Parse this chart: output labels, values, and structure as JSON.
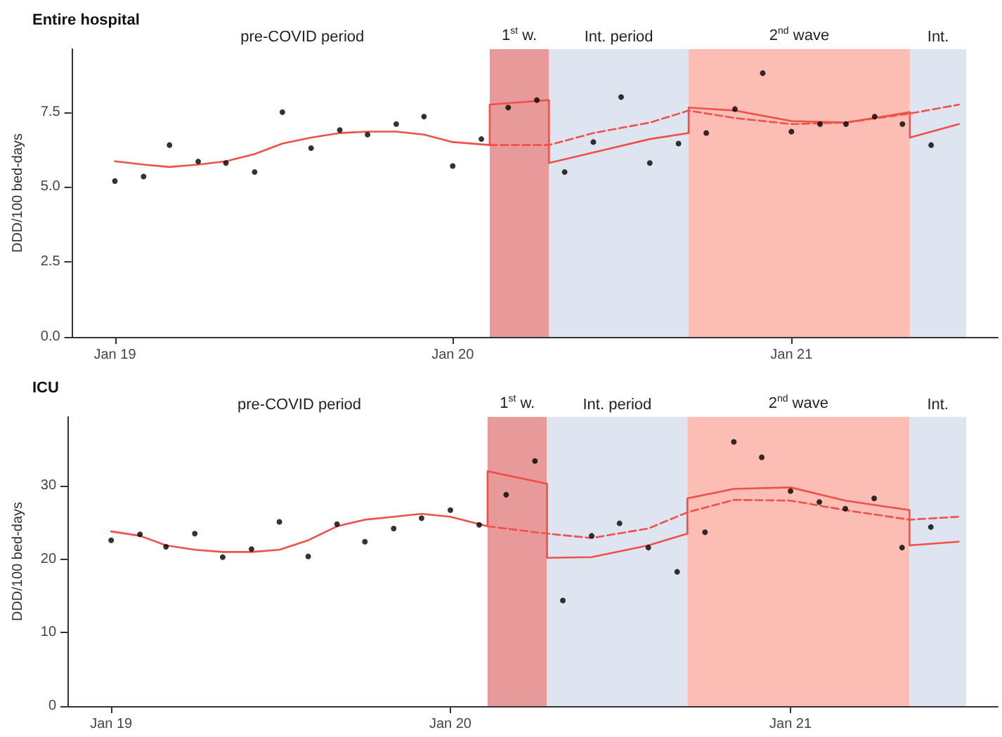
{
  "chart_data": [
    {
      "type": "scatter",
      "title": "Entire hospital",
      "ylabel": "DDD/100 bed-days",
      "grid": false,
      "annotations": [
        "pre-COVID period"
      ],
      "x": [
        "2019-01",
        "2019-02",
        "2019-03",
        "2019-04",
        "2019-05",
        "2019-06",
        "2019-07",
        "2019-08",
        "2019-09",
        "2019-10",
        "2019-11",
        "2019-12",
        "2020-01",
        "2020-02",
        "2020-03",
        "2020-04",
        "2020-05",
        "2020-06",
        "2020-07",
        "2020-08",
        "2020-09",
        "2020-10",
        "2020-11",
        "2020-12",
        "2021-01",
        "2021-02",
        "2021-03",
        "2021-04",
        "2021-05",
        "2021-06"
      ],
      "series": [
        {
          "marker": "circle",
          "color": "#000000",
          "values": [
            5.2,
            5.35,
            6.4,
            5.85,
            5.8,
            5.5,
            7.5,
            6.3,
            6.9,
            6.75,
            7.1,
            7.35,
            5.7,
            6.6,
            7.65,
            7.9,
            5.5,
            6.5,
            8.0,
            5.8,
            6.45,
            6.8,
            7.6,
            8.8,
            6.85,
            7.1,
            7.1,
            7.35,
            7.1,
            6.4
          ]
        },
        {
          "type": "line",
          "marker": "none",
          "line_style": "solid",
          "color": "#f0504a",
          "x": [
            "2019-01",
            "2019-02",
            "2019-03",
            "2019-04",
            "2019-05",
            "2019-06",
            "2019-07",
            "2019-08",
            "2019-09",
            "2019-10",
            "2019-11",
            "2019-12",
            "2020-01",
            "2020-02-10",
            "2020-02-10",
            "2020-04-14",
            "2020-04-14",
            "2020-06",
            "2020-08",
            "2020-09-12",
            "2020-09-12",
            "2020-11",
            "2021-01",
            "2021-03",
            "2021-05-09",
            "2021-05-09",
            "2021-07-01"
          ],
          "values": [
            5.86,
            5.75,
            5.67,
            5.75,
            5.86,
            6.1,
            6.45,
            6.65,
            6.8,
            6.85,
            6.85,
            6.75,
            6.5,
            6.4,
            7.75,
            7.9,
            5.8,
            6.15,
            6.6,
            6.8,
            7.65,
            7.55,
            7.2,
            7.15,
            7.5,
            6.65,
            7.1
          ]
        },
        {
          "type": "line",
          "marker": "none",
          "line_style": "dashed",
          "color": "#f0504a",
          "x": [
            "2020-02-10",
            "2020-04-14",
            "2020-06",
            "2020-08",
            "2020-09-12",
            "2020-11",
            "2021-01",
            "2021-03",
            "2021-05-09",
            "2021-07-01"
          ],
          "values": [
            6.4,
            6.4,
            6.8,
            7.15,
            7.55,
            7.3,
            7.1,
            7.15,
            7.45,
            7.75
          ]
        }
      ],
      "xlim": [
        "2018-11-15",
        "2021-08-12"
      ],
      "xticks": [
        {
          "value": "2019-01",
          "label": "Jan 19"
        },
        {
          "value": "2020-01",
          "label": "Jan 20"
        },
        {
          "value": "2021-01",
          "label": "Jan 21"
        }
      ],
      "ylim": [
        0,
        9.6
      ],
      "yticks": [
        {
          "value": 0,
          "label": "0.0"
        },
        {
          "value": 2.5,
          "label": "2.5"
        },
        {
          "value": 5,
          "label": "5.0"
        },
        {
          "value": 7.5,
          "label": "7.5"
        }
      ],
      "bands": [
        {
          "axis": "x",
          "from": "2020-02-10",
          "to": "2020-04-14",
          "label": "1$^{st}$ w.",
          "color": "#e89a9a"
        },
        {
          "axis": "x",
          "from": "2020-04-14",
          "to": "2020-09-12",
          "label": "Int. period",
          "color": "#dfe5f0"
        },
        {
          "axis": "x",
          "from": "2020-09-12",
          "to": "2021-05-09",
          "label": "2$^{nd}$ wave",
          "color": "#fbbdb4"
        },
        {
          "axis": "x",
          "from": "2021-05-09",
          "to": "2021-07-09",
          "label": "Int.",
          "color": "#dfe5f0"
        }
      ]
    },
    {
      "type": "scatter",
      "title": "ICU",
      "ylabel": "DDD/100 bed-days",
      "grid": false,
      "annotations": [
        "pre-COVID period"
      ],
      "x": [
        "2019-01",
        "2019-02",
        "2019-03",
        "2019-04",
        "2019-05",
        "2019-06",
        "2019-07",
        "2019-08",
        "2019-09",
        "2019-10",
        "2019-11",
        "2019-12",
        "2020-01",
        "2020-02",
        "2020-03",
        "2020-04",
        "2020-05",
        "2020-06",
        "2020-07",
        "2020-08",
        "2020-09",
        "2020-10",
        "2020-11",
        "2020-12",
        "2021-01",
        "2021-02",
        "2021-03",
        "2021-04",
        "2021-05",
        "2021-06"
      ],
      "series": [
        {
          "marker": "circle",
          "color": "#000000",
          "values": [
            22.6,
            23.4,
            21.7,
            23.5,
            20.3,
            21.4,
            25.1,
            20.4,
            24.8,
            22.4,
            24.2,
            25.6,
            26.7,
            24.7,
            28.8,
            33.4,
            14.4,
            23.2,
            24.9,
            21.6,
            18.3,
            23.7,
            36.0,
            33.9,
            29.3,
            27.8,
            26.9,
            28.3,
            21.6,
            24.4
          ]
        },
        {
          "type": "line",
          "marker": "none",
          "line_style": "solid",
          "color": "#f0504a",
          "x": [
            "2019-01",
            "2019-02",
            "2019-03",
            "2019-04",
            "2019-05",
            "2019-06",
            "2019-07",
            "2019-08",
            "2019-09",
            "2019-10",
            "2019-11",
            "2019-12",
            "2020-01",
            "2020-02-10",
            "2020-02-10",
            "2020-04-14",
            "2020-04-14",
            "2020-06",
            "2020-08",
            "2020-09-12",
            "2020-09-12",
            "2020-11",
            "2021-01",
            "2021-03",
            "2021-05-09",
            "2021-05-09",
            "2021-07-01"
          ],
          "values": [
            23.8,
            23.2,
            21.9,
            21.3,
            21.0,
            21.0,
            21.3,
            22.6,
            24.5,
            25.4,
            25.8,
            26.2,
            25.8,
            24.5,
            32.0,
            30.3,
            20.2,
            20.3,
            21.9,
            23.5,
            28.3,
            29.6,
            29.8,
            28.0,
            26.7,
            21.9,
            22.4
          ]
        },
        {
          "type": "line",
          "marker": "none",
          "line_style": "dashed",
          "color": "#f0504a",
          "x": [
            "2020-02-10",
            "2020-04-14",
            "2020-06",
            "2020-08",
            "2020-09-12",
            "2020-11",
            "2021-01",
            "2021-03",
            "2021-05-09",
            "2021-07-01"
          ],
          "values": [
            24.5,
            23.5,
            22.9,
            24.2,
            26.4,
            28.1,
            28.0,
            26.7,
            25.4,
            25.8
          ]
        }
      ],
      "xlim": [
        "2018-11-15",
        "2021-08-12"
      ],
      "xticks": [
        {
          "value": "2019-01",
          "label": "Jan 19"
        },
        {
          "value": "2020-01",
          "label": "Jan 20"
        },
        {
          "value": "2021-01",
          "label": "Jan 21"
        }
      ],
      "ylim": [
        0,
        39.4
      ],
      "yticks": [
        0,
        10,
        20,
        30
      ],
      "bands": [
        {
          "axis": "x",
          "from": "2020-02-10",
          "to": "2020-04-14",
          "label": "1$^{st}$ w.",
          "color": "#e89a9a"
        },
        {
          "axis": "x",
          "from": "2020-04-14",
          "to": "2020-09-12",
          "label": "Int. period",
          "color": "#dfe5f0"
        },
        {
          "axis": "x",
          "from": "2020-09-12",
          "to": "2021-05-09",
          "label": "2$^{nd}$ wave",
          "color": "#fbbdb4"
        },
        {
          "axis": "x",
          "from": "2021-05-09",
          "to": "2021-07-09",
          "label": "Int.",
          "color": "#dfe5f0"
        }
      ]
    }
  ]
}
